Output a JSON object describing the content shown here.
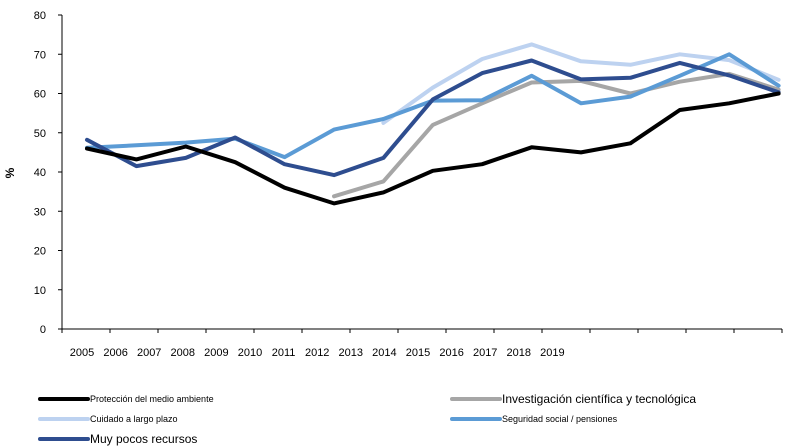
{
  "chart_data": {
    "type": "line",
    "title": "",
    "xlabel": "",
    "ylabel": "%",
    "ylim": [
      0,
      80
    ],
    "yticks": [
      0,
      10,
      20,
      30,
      40,
      50,
      60,
      70,
      80
    ],
    "x_tick_labels": [
      "2005",
      "2006",
      "2007",
      "2008",
      "2009",
      "2010",
      "2011",
      "2012",
      "2013",
      "2014",
      "2015",
      "2016",
      "2017",
      "2018",
      "2019"
    ],
    "grid": false,
    "legend_position": "bottom",
    "series": [
      {
        "name": "Protección del medio ambiente",
        "color": "#000000",
        "values": [
          46,
          43.2,
          46.5,
          42.5,
          36,
          32,
          34.8,
          40.3,
          42,
          46.3,
          45,
          47.3,
          55.8,
          57.5,
          60
        ]
      },
      {
        "name": "Investigación científica y tecnológica",
        "color": "#a6a6a6",
        "values": [
          null,
          null,
          null,
          null,
          null,
          33.8,
          37.6,
          52,
          57.5,
          62.8,
          63.2,
          60,
          63,
          65,
          61
        ]
      },
      {
        "name": "Cuidado a largo plazo",
        "color": "#bdd2f0",
        "values": [
          null,
          null,
          null,
          null,
          null,
          null,
          52.5,
          61.5,
          68.8,
          72.5,
          68.2,
          67.3,
          70,
          68.5,
          63.5
        ]
      },
      {
        "name": "Seguridad social / pensiones",
        "color": "#5b9bd5",
        "values": [
          46.2,
          46.8,
          47.5,
          48.5,
          43.8,
          50.8,
          53.5,
          58.2,
          58.3,
          64.5,
          57.5,
          59.2,
          64.5,
          70,
          62
        ]
      },
      {
        "name": "Muy pocos recursos",
        "color": "#2e4d8f",
        "values": [
          48.2,
          41.5,
          43.6,
          48.8,
          42,
          39.2,
          43.6,
          58.5,
          65.2,
          68.4,
          63.6,
          64,
          67.8,
          64.6,
          60.3
        ]
      }
    ]
  }
}
